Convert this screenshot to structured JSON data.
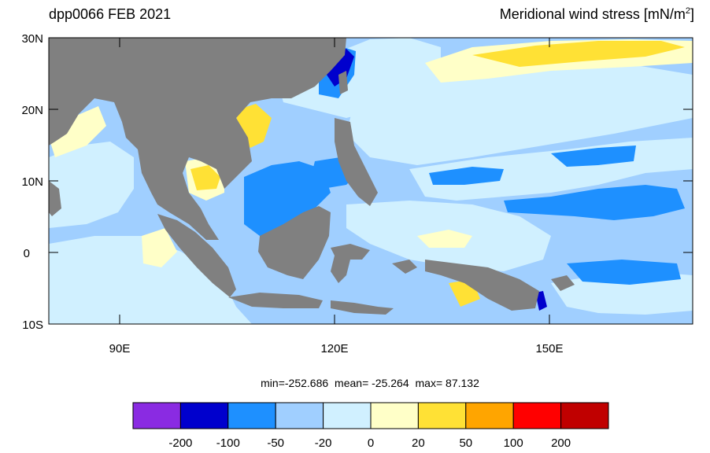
{
  "header": {
    "left_title": "dpp0066 FEB 2021",
    "right_title_main": "Meridional wind stress [mN/m",
    "right_title_sup": "2",
    "right_title_end": "]"
  },
  "map": {
    "lon_range": [
      80,
      170
    ],
    "lat_range": [
      -10,
      30
    ],
    "lat_labels": [
      "30N",
      "20N",
      "10N",
      "0",
      "10S"
    ],
    "lon_labels": [
      "90E",
      "120E",
      "150E"
    ],
    "land_color": "#808080"
  },
  "stats": {
    "min_text": "min=-252.686",
    "mean_text": "mean= -25.264",
    "max_text": "max=  87.132"
  },
  "colorbar": {
    "colors": [
      "#8a2be2",
      "#0000cd",
      "#1e90ff",
      "#a0cfff",
      "#d0f0ff",
      "#ffffc8",
      "#ffe135",
      "#ffa500",
      "#ff0000",
      "#c00000"
    ],
    "labels": [
      "-200",
      "-100",
      "-50",
      "-20",
      "0",
      "20",
      "50",
      "100",
      "200"
    ]
  }
}
